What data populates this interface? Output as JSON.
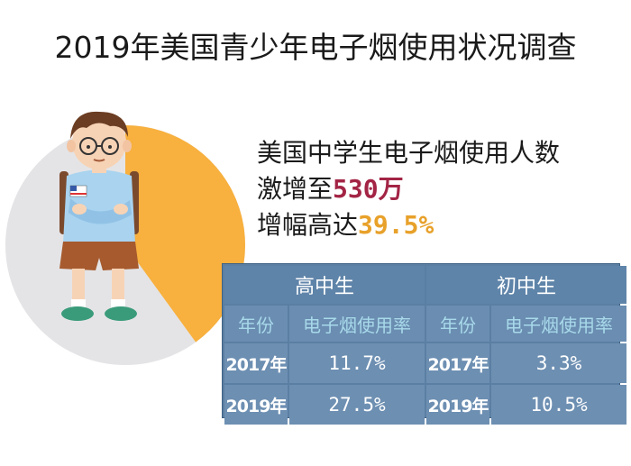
{
  "title": "2019年美国青少年电子烟使用状况调查",
  "headline": {
    "line1": "美国中学生电子烟使用人数",
    "line2_prefix": "激增至",
    "line2_highlight": "530万",
    "line3_prefix": "增幅高达",
    "line3_highlight": "39.5%"
  },
  "colors": {
    "pie_main": "#e4e4e6",
    "pie_slice": "#f8b03e",
    "highlight_red": "#a32445",
    "highlight_yellow": "#e8a12a",
    "table_bg": "#6d8fb2",
    "table_subheader_text": "#a8d9ea"
  },
  "chart_data": {
    "type": "table",
    "groups": [
      "高中生",
      "初中生"
    ],
    "columns": [
      "年份",
      "电子烟使用率",
      "年份",
      "电子烟使用率"
    ],
    "rows": [
      [
        "2017年",
        "11.7%",
        "2017年",
        "3.3%"
      ],
      [
        "2019年",
        "27.5%",
        "2019年",
        "10.5%"
      ]
    ],
    "decorative_pie": {
      "highlight_fraction": 0.4
    }
  }
}
